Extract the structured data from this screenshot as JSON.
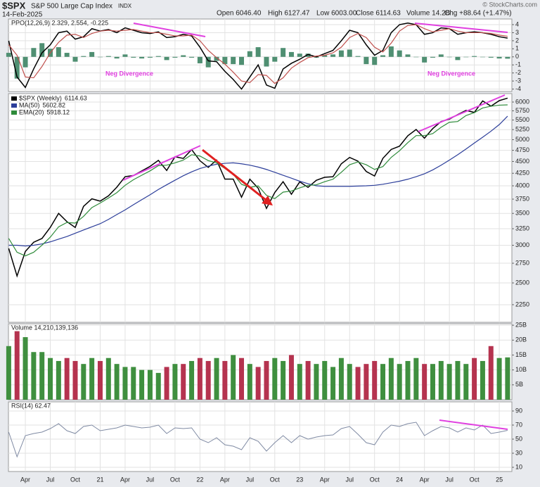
{
  "header": {
    "symbol": "$SPX",
    "name": "S&P 500 Large Cap Index",
    "exchange": "INDX",
    "date": "14-Feb-2025",
    "quote": [
      "Open 6046.40",
      "High 6127.47",
      "Low 6003.00",
      "Close 6114.63",
      "Volume 14.2B",
      "Chg +88.64 (+1.47%)"
    ],
    "watermark": "© StockCharts.com"
  },
  "chart_data": [
    {
      "type": "line",
      "title": "PPO(12,26,9) 2.329, 2.554, -0.225",
      "annotations": [
        "Neg Divergence",
        "Neg Divergence"
      ],
      "series": [
        {
          "type": "line",
          "color": "#000000",
          "values": [
            2.0,
            -2.5,
            -3.8,
            -1.5,
            0.5,
            1.5,
            3.0,
            3.2,
            2.2,
            2.5,
            3.5,
            3.2,
            3.4,
            3.0,
            3.6,
            3.3,
            3.0,
            2.9,
            3.1,
            2.4,
            2.5,
            2.8,
            2.6,
            1.2,
            -0.5,
            -0.6,
            -1.8,
            -2.8,
            -4.0,
            -2.5,
            -1.0,
            -3.5,
            -3.9,
            -1.5,
            -0.8,
            -0.3,
            0.3,
            0.0,
            0.4,
            0.8,
            2.0,
            3.3,
            3.0,
            1.5,
            0.2,
            0.8,
            3.0,
            4.0,
            4.2,
            4.0,
            2.8,
            3.0,
            3.6,
            3.5,
            2.8,
            3.0,
            3.1,
            3.0,
            2.8,
            2.5,
            2.329
          ]
        },
        {
          "type": "line",
          "color": "#c0504d",
          "values": [
            1.5,
            0.2,
            -2.5,
            -2.6,
            -1.2,
            0.5,
            1.8,
            2.7,
            2.8,
            2.4,
            2.9,
            3.2,
            3.3,
            3.2,
            3.3,
            3.4,
            3.2,
            3.0,
            3.0,
            2.8,
            2.6,
            2.6,
            2.7,
            2.0,
            0.8,
            -0.1,
            -0.9,
            -1.9,
            -3.0,
            -3.2,
            -2.2,
            -2.3,
            -3.3,
            -2.6,
            -1.4,
            -0.7,
            -0.1,
            0.1,
            0.2,
            0.5,
            1.2,
            2.4,
            2.9,
            2.4,
            1.2,
            0.6,
            1.7,
            3.2,
            3.9,
            4.0,
            3.5,
            3.1,
            3.3,
            3.5,
            3.2,
            3.0,
            3.0,
            3.0,
            2.9,
            2.7,
            2.554
          ]
        },
        {
          "type": "bar",
          "color": "#4f8f72",
          "values": [
            0.5,
            -2.7,
            -1.3,
            1.1,
            1.7,
            1.0,
            1.2,
            0.5,
            -0.6,
            0.1,
            0.6,
            0.0,
            0.1,
            -0.2,
            0.3,
            -0.1,
            -0.2,
            -0.1,
            0.1,
            -0.4,
            -0.1,
            0.2,
            -0.1,
            -0.8,
            -1.3,
            -0.5,
            -0.9,
            -0.9,
            -1.0,
            0.7,
            1.2,
            -1.2,
            -0.6,
            1.1,
            0.6,
            0.4,
            0.4,
            -0.1,
            0.2,
            0.3,
            0.8,
            0.9,
            0.1,
            -0.9,
            -1.0,
            0.2,
            1.3,
            0.8,
            0.3,
            0.0,
            -0.7,
            -0.1,
            0.3,
            0.0,
            -0.4,
            0.0,
            0.1,
            0.0,
            -0.1,
            -0.2,
            -0.225
          ]
        }
      ],
      "ylim": [
        -4.3,
        4.7
      ],
      "yticks": [
        -4,
        -3,
        -2,
        -1,
        0,
        1,
        2,
        3,
        4
      ],
      "grid": true
    },
    {
      "type": "line",
      "log": true,
      "series": [
        {
          "name": "$SPX (Weekly)",
          "color": "#000000",
          "values": [
            2954,
            2585,
            2912,
            3044,
            3100,
            3271,
            3500,
            3363,
            3270,
            3622,
            3756,
            3714,
            3811,
            3973,
            4181,
            4204,
            4298,
            4395,
            4523,
            4308,
            4605,
            4567,
            4766,
            4516,
            4374,
            4530,
            4132,
            4132,
            3785,
            4130,
            3955,
            3586,
            3872,
            4080,
            3840,
            4077,
            3970,
            4109,
            4169,
            4180,
            4450,
            4589,
            4508,
            4288,
            4194,
            4568,
            4770,
            4846,
            5096,
            5254,
            5036,
            5278,
            5460,
            5522,
            5648,
            5762,
            5705,
            6032,
            5882,
            6041,
            6114.63
          ]
        },
        {
          "name": "MA(50)",
          "color": "#2c3e9a",
          "values": [
            3000,
            3000,
            2990,
            3000,
            3020,
            3050,
            3090,
            3130,
            3180,
            3230,
            3280,
            3330,
            3400,
            3480,
            3560,
            3650,
            3740,
            3830,
            3930,
            4020,
            4110,
            4200,
            4280,
            4350,
            4400,
            4440,
            4460,
            4470,
            4450,
            4420,
            4380,
            4330,
            4270,
            4210,
            4150,
            4090,
            4040,
            4000,
            3990,
            3990,
            3990,
            3990,
            3995,
            4000,
            4010,
            4030,
            4060,
            4090,
            4130,
            4180,
            4240,
            4320,
            4420,
            4530,
            4650,
            4780,
            4920,
            5060,
            5210,
            5380,
            5602.82
          ]
        },
        {
          "name": "EMA(20)",
          "color": "#2e8b3a",
          "values": [
            3100,
            2900,
            2850,
            2900,
            3000,
            3120,
            3280,
            3350,
            3340,
            3450,
            3600,
            3680,
            3770,
            3870,
            4010,
            4120,
            4210,
            4300,
            4410,
            4420,
            4470,
            4530,
            4650,
            4620,
            4520,
            4470,
            4350,
            4230,
            4030,
            3970,
            4000,
            3820,
            3760,
            3880,
            3900,
            3960,
            4010,
            4020,
            4080,
            4130,
            4270,
            4430,
            4490,
            4430,
            4330,
            4390,
            4590,
            4740,
            4930,
            5100,
            5100,
            5150,
            5310,
            5440,
            5460,
            5620,
            5700,
            5830,
            5880,
            5910,
            5918.12
          ]
        }
      ],
      "ylim": [
        2066,
        6250
      ],
      "yticks": [
        2250,
        2500,
        2750,
        3000,
        3250,
        3500,
        3750,
        4000,
        4250,
        4500,
        4750,
        5000,
        5250,
        5500,
        5750,
        6000
      ],
      "grid": true
    },
    {
      "type": "bar",
      "title": "Volume 14,210,139,136",
      "up_color": "#3f8f3f",
      "down_color": "#b5334f",
      "values": [
        18000000000,
        23000000000,
        21000000000,
        16000000000,
        16000000000,
        14000000000,
        13000000000,
        14000000000,
        13000000000,
        12000000000,
        14000000000,
        13000000000,
        14000000000,
        12000000000,
        11000000000,
        11000000000,
        10000000000,
        10000000000,
        9000000000,
        11000000000,
        12000000000,
        12000000000,
        13000000000,
        14000000000,
        13000000000,
        14000000000,
        13000000000,
        15000000000,
        14000000000,
        12000000000,
        11000000000,
        13000000000,
        14000000000,
        13000000000,
        15000000000,
        12000000000,
        13000000000,
        12000000000,
        13000000000,
        11000000000,
        14000000000,
        12000000000,
        11000000000,
        12000000000,
        13000000000,
        12000000000,
        14000000000,
        12000000000,
        13000000000,
        14000000000,
        12000000000,
        12000000000,
        13000000000,
        12000000000,
        13000000000,
        12000000000,
        14000000000,
        13000000000,
        18000000000,
        14000000000,
        14210139136
      ],
      "ylim": [
        0,
        25500000000
      ],
      "yticks": [
        {
          "value": 5000000000,
          "label": "5B"
        },
        {
          "value": 10000000000,
          "label": "10B"
        },
        {
          "value": 15000000000,
          "label": "15B"
        },
        {
          "value": 20000000000,
          "label": "20B"
        },
        {
          "value": 25000000000,
          "label": "25B"
        }
      ],
      "grid": true
    },
    {
      "type": "line",
      "title": "RSI(14) 62.47",
      "color": "#7f8aa3",
      "categories": [
        null,
        null,
        "Apr",
        null,
        null,
        "Jul",
        null,
        null,
        "Oct",
        null,
        null,
        "21",
        null,
        null,
        "Apr",
        null,
        null,
        "Jul",
        null,
        null,
        "Oct",
        null,
        null,
        "22",
        null,
        null,
        "Apr",
        null,
        null,
        "Jul",
        null,
        null,
        "Oct",
        null,
        null,
        "23",
        null,
        null,
        "Apr",
        null,
        null,
        "Jul",
        null,
        null,
        "Oct",
        null,
        null,
        "24",
        null,
        null,
        "Apr",
        null,
        null,
        "Jul",
        null,
        null,
        "Oct",
        null,
        null,
        "25",
        null
      ],
      "values": [
        60,
        25,
        55,
        58,
        60,
        65,
        72,
        62,
        58,
        68,
        70,
        62,
        64,
        66,
        70,
        68,
        66,
        67,
        70,
        58,
        66,
        65,
        66,
        50,
        45,
        52,
        42,
        40,
        35,
        52,
        47,
        33,
        45,
        55,
        45,
        55,
        50,
        53,
        55,
        56,
        65,
        68,
        57,
        45,
        42,
        60,
        70,
        68,
        72,
        74,
        55,
        62,
        68,
        66,
        60,
        66,
        63,
        70,
        58,
        60,
        62.47
      ],
      "ylim": [
        4,
        103
      ],
      "yticks": [
        10,
        30,
        50,
        70,
        90
      ],
      "grid": true
    }
  ]
}
